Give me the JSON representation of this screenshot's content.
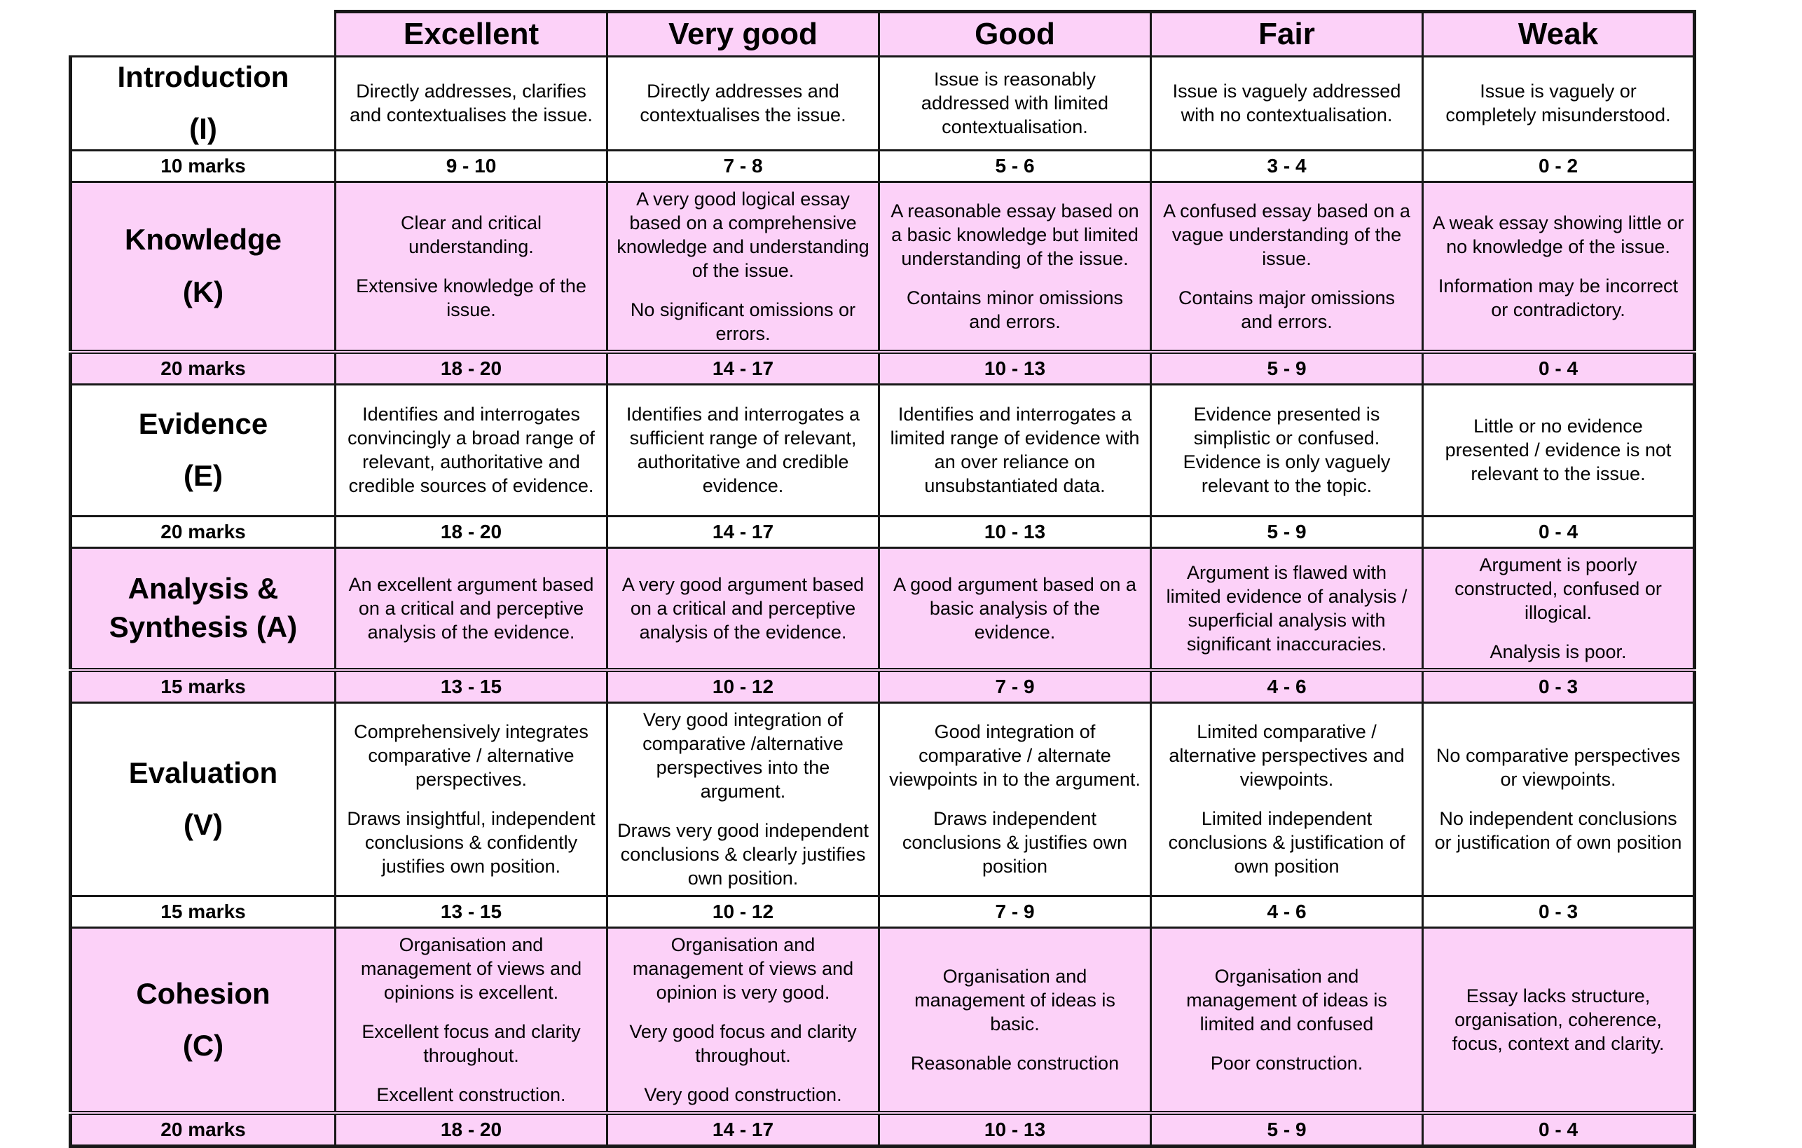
{
  "colors": {
    "pink": "#fcd1f8",
    "border": "#181818",
    "background": "#ffffff"
  },
  "columns": [
    "Excellent",
    "Very good",
    "Good",
    "Fair",
    "Weak"
  ],
  "rows": [
    {
      "label": [
        "Introduction",
        "(I)"
      ],
      "shaded": false,
      "marks_label": "10 marks",
      "cells": [
        [
          "Directly addresses, clarifies and contextualises the issue."
        ],
        [
          "Directly addresses and contextualises the issue."
        ],
        [
          "Issue is reasonably addressed with limited contextualisation."
        ],
        [
          "Issue is vaguely addressed with no contextualisation."
        ],
        [
          "Issue is vaguely or completely misunderstood."
        ]
      ],
      "marks": [
        "9 - 10",
        "7 - 8",
        "5 - 6",
        "3 - 4",
        "0 - 2"
      ]
    },
    {
      "label": [
        "Knowledge",
        "(K)"
      ],
      "shaded": true,
      "marks_label": "20 marks",
      "cells": [
        [
          "Clear and critical understanding.",
          "Extensive knowledge of the issue."
        ],
        [
          "A very good logical essay based on a comprehensive knowledge and understanding of the issue.",
          "No significant omissions or errors."
        ],
        [
          "A reasonable essay based on a basic knowledge but limited understanding of the issue.",
          "Contains minor omissions and errors."
        ],
        [
          "A confused essay based on a vague understanding of the issue.",
          "Contains major omissions and errors."
        ],
        [
          "A weak essay showing little or no knowledge of the issue.",
          "Information may be incorrect or contradictory."
        ]
      ],
      "marks": [
        "18 - 20",
        "14 - 17",
        "10 - 13",
        "5 - 9",
        "0 - 4"
      ]
    },
    {
      "label": [
        "Evidence",
        "(E)"
      ],
      "shaded": false,
      "marks_label": "20 marks",
      "cells": [
        [
          "Identifies and interrogates convincingly a broad range of relevant, authoritative and credible sources of evidence."
        ],
        [
          "Identifies and interrogates a sufficient range of relevant, authoritative and credible evidence."
        ],
        [
          "Identifies and interrogates a limited range of evidence with an over reliance on unsubstantiated data."
        ],
        [
          "Evidence presented is simplistic or confused. Evidence is only vaguely relevant to the topic."
        ],
        [
          "Little or no evidence presented / evidence is not relevant to the issue."
        ]
      ],
      "marks": [
        "18 - 20",
        "14 - 17",
        "10 - 13",
        "5 - 9",
        "0 - 4"
      ]
    },
    {
      "label": [
        "Analysis &",
        "Synthesis (A)"
      ],
      "shaded": true,
      "marks_label": "15 marks",
      "cells": [
        [
          "An excellent argument based on a critical and perceptive analysis of the evidence."
        ],
        [
          "A very good argument based on a critical and perceptive analysis of the evidence."
        ],
        [
          "A good argument based on a basic analysis of the evidence."
        ],
        [
          "Argument is flawed with limited evidence of analysis / superficial analysis with significant inaccuracies."
        ],
        [
          "Argument is poorly constructed, confused or illogical.",
          "Analysis is poor."
        ]
      ],
      "marks": [
        "13 - 15",
        "10 - 12",
        "7 - 9",
        "4 - 6",
        "0 - 3"
      ]
    },
    {
      "label": [
        "Evaluation",
        "(V)"
      ],
      "shaded": false,
      "marks_label": "15 marks",
      "cells": [
        [
          "Comprehensively integrates comparative / alternative perspectives.",
          "Draws insightful, independent conclusions & confidently justifies own position."
        ],
        [
          "Very good integration of comparative /alternative perspectives into the argument.",
          "Draws very good independent conclusions & clearly justifies own position."
        ],
        [
          "Good integration of comparative / alternate viewpoints in to the argument.",
          "Draws independent conclusions & justifies own position"
        ],
        [
          "Limited comparative / alternative perspectives and viewpoints.",
          "Limited independent conclusions & justification of own position"
        ],
        [
          "No comparative perspectives or viewpoints.",
          "No independent conclusions or justification of own position"
        ]
      ],
      "marks": [
        "13 - 15",
        "10 - 12",
        "7 - 9",
        "4 - 6",
        "0 - 3"
      ]
    },
    {
      "label": [
        "Cohesion",
        "(C)"
      ],
      "shaded": true,
      "marks_label": "20 marks",
      "cells": [
        [
          "Organisation and management of views and opinions is excellent.",
          "Excellent focus and clarity throughout.",
          "Excellent construction."
        ],
        [
          "Organisation and management of views and opinion is very good.",
          "Very good focus and clarity throughout.",
          "Very good construction."
        ],
        [
          "Organisation and management of ideas is basic.",
          "Reasonable construction"
        ],
        [
          "Organisation and management of ideas is limited and confused",
          "Poor construction."
        ],
        [
          "Essay lacks structure, organisation, coherence, focus, context and clarity."
        ]
      ],
      "marks": [
        "18 - 20",
        "14 - 17",
        "10 - 13",
        "5 - 9",
        "0 - 4"
      ]
    }
  ]
}
